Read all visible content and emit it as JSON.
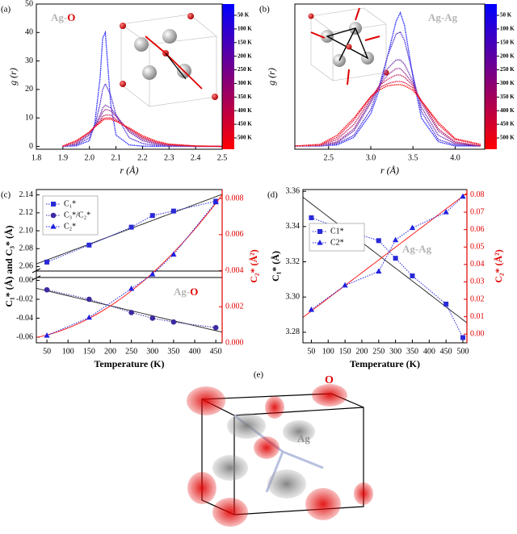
{
  "chart_data": [
    {
      "type": "line",
      "panel_label": "(a)",
      "annotation": [
        "Ag-",
        "O"
      ],
      "annotation_colors": [
        "#b4b4b4",
        "#e00000"
      ],
      "x_label": "r (Å)",
      "y_label": "g (r)",
      "x": [
        1.9,
        1.95,
        2.0,
        2.02,
        2.04,
        2.05,
        2.06,
        2.08,
        2.1,
        2.15,
        2.2,
        2.25,
        2.3,
        2.4,
        2.5
      ],
      "xlim": [
        1.8,
        2.5
      ],
      "xticks": [
        1.8,
        1.9,
        {
          "value": 2,
          "label": "2.0"
        },
        2.1,
        2.2,
        2.3,
        2.4,
        2.5
      ],
      "ylim": [
        -1,
        50
      ],
      "yticks": [
        0,
        10,
        20,
        30,
        40,
        50
      ],
      "colorbar_labels": [
        "50 K",
        "100 K",
        "150 K",
        "200 K",
        "250 K",
        "300 K",
        "350 K",
        "400 K",
        "450 K",
        "500 K"
      ],
      "colorbar_colors": [
        "#0000ff",
        "#ff0000"
      ],
      "series": [
        {
          "color": "#1e1eff",
          "values": [
            0,
            0.2,
            2,
            8,
            24,
            38,
            40,
            15,
            4,
            0.5,
            0.1,
            0,
            0,
            0,
            0
          ]
        },
        {
          "color": "#4a2ad0",
          "values": [
            0,
            0.5,
            3,
            7,
            15,
            20,
            22,
            18,
            11,
            3,
            1,
            0.3,
            0.1,
            0,
            0
          ]
        },
        {
          "color": "#7030b0",
          "values": [
            0,
            0.8,
            4,
            7,
            11,
            13.5,
            14.5,
            13.5,
            11,
            5,
            2,
            0.7,
            0.2,
            0,
            0
          ]
        },
        {
          "color": "#9a2a90",
          "values": [
            0,
            1,
            4.5,
            7,
            10,
            12,
            13,
            12.5,
            10.5,
            5.5,
            2.5,
            1,
            0.3,
            0.1,
            0
          ]
        },
        {
          "color": "#c02060",
          "values": [
            0.1,
            1.5,
            5,
            7,
            9,
            10.5,
            11,
            11,
            9.5,
            6,
            3,
            1.3,
            0.5,
            0.1,
            0
          ]
        },
        {
          "color": "#e01040",
          "values": [
            0.1,
            1.8,
            5,
            7,
            8.6,
            9.6,
            10,
            10,
            9,
            6.2,
            3.3,
            1.6,
            0.7,
            0.1,
            0
          ]
        },
        {
          "color": "#ff0000",
          "values": [
            0.2,
            2,
            5,
            6.8,
            8.2,
            9.2,
            9.5,
            9.5,
            8.8,
            6.5,
            3.8,
            1.9,
            0.8,
            0.2,
            0
          ]
        }
      ]
    },
    {
      "type": "line",
      "panel_label": "(b)",
      "annotation": [
        "Ag-Ag"
      ],
      "annotation_colors": [
        "#b4b4b4"
      ],
      "x_label": "r (Å)",
      "y_label": "g (r)",
      "x": [
        2.1,
        2.4,
        2.6,
        2.8,
        3.0,
        3.1,
        3.2,
        3.3,
        3.35,
        3.4,
        3.5,
        3.6,
        3.8,
        4.0,
        4.3
      ],
      "xlim": [
        2.1,
        4.35
      ],
      "xticks": [
        2.5,
        {
          "value": 3,
          "label": "3.0"
        },
        3.5,
        {
          "value": 4,
          "label": "4.0"
        }
      ],
      "ylim": [
        -0.15,
        6.6
      ],
      "colorbar_labels": [
        "50 K",
        "100 K",
        "150 K",
        "200 K",
        "250 K",
        "300 K",
        "350 K",
        "400 K",
        "450 K",
        "500 K"
      ],
      "colorbar_colors": [
        "#0000ff",
        "#ff0000"
      ],
      "series": [
        {
          "color": "#1e1eff",
          "values": [
            0,
            0,
            0.05,
            0.4,
            1.5,
            2.6,
            4.2,
            5.8,
            6.2,
            5.6,
            3.2,
            1.3,
            0.2,
            0,
            0
          ]
        },
        {
          "color": "#4a2ad0",
          "values": [
            0,
            0,
            0.1,
            0.5,
            1.7,
            2.8,
            4.2,
            5.2,
            5.3,
            4.9,
            3.3,
            1.6,
            0.3,
            0.05,
            0
          ]
        },
        {
          "color": "#7030b0",
          "values": [
            0,
            0,
            0.15,
            0.7,
            2,
            2.8,
            3.6,
            4,
            4,
            3.8,
            3,
            1.8,
            0.5,
            0.1,
            0
          ]
        },
        {
          "color": "#9a2a90",
          "values": [
            0,
            0.02,
            0.2,
            0.8,
            2.1,
            2.8,
            3.3,
            3.6,
            3.6,
            3.4,
            2.9,
            2,
            0.7,
            0.15,
            0
          ]
        },
        {
          "color": "#c02060",
          "values": [
            0,
            0.03,
            0.3,
            1,
            2.2,
            2.8,
            3.1,
            3.3,
            3.3,
            3.2,
            2.8,
            2.1,
            0.8,
            0.2,
            0
          ]
        },
        {
          "color": "#e01040",
          "values": [
            0,
            0.05,
            0.4,
            1.2,
            2.3,
            2.7,
            2.9,
            3,
            3,
            2.95,
            2.7,
            2.1,
            1,
            0.3,
            0.05
          ]
        },
        {
          "color": "#ff0000",
          "values": [
            0,
            0.08,
            0.5,
            1.3,
            2.3,
            2.6,
            2.8,
            2.85,
            2.85,
            2.8,
            2.6,
            2.1,
            1.1,
            0.35,
            0.08
          ]
        }
      ]
    },
    {
      "type": "scatter",
      "panel_label": "(c)",
      "annotation": [
        "Ag-",
        "O"
      ],
      "annotation_colors": [
        "#b4b4b4",
        "#e00000"
      ],
      "x_label": "Temperature (K)",
      "y_label": "C₁* (Å) and C₃* (Å)",
      "y2_label": "C₂* (Å²)",
      "x": [
        50,
        150,
        250,
        300,
        350,
        450
      ],
      "xlim": [
        25,
        465
      ],
      "xticks": [
        50,
        100,
        150,
        200,
        250,
        300,
        350,
        400,
        450
      ],
      "ylim": [
        2.055,
        2.146
      ],
      "yticks": [
        2.06,
        2.08,
        {
          "value": 2.1,
          "label": "2.10"
        },
        2.12,
        2.14
      ],
      "ylim_lower": [
        -0.066,
        0.003
      ],
      "yticks_lower": [
        {
          "value": 0,
          "label": "0.00"
        },
        -0.02,
        -0.04,
        -0.06
      ],
      "y2lim": [
        0,
        0.0085
      ],
      "y2ticks": [
        {
          "value": 0,
          "label": "0.000"
        },
        {
          "value": 0.002,
          "label": "0.002"
        },
        {
          "value": 0.004,
          "label": "0.004"
        },
        {
          "value": 0.006,
          "label": "0.006"
        },
        {
          "value": 0.008,
          "label": "0.008"
        }
      ],
      "legend": "upper left",
      "series": [
        {
          "name": "C₁*",
          "color": "#2a2ad8",
          "marker": "square",
          "axis": "y",
          "fit": "linear",
          "fit_color": "#333333",
          "values": [
            2.065,
            2.084,
            2.104,
            2.117,
            2.122,
            2.133
          ]
        },
        {
          "name": "C₃*/C₂*",
          "color": "#3a2aa0",
          "marker": "circle",
          "axis": "y_lower",
          "fit": "linear",
          "fit_color": "#333333",
          "values": [
            -0.01,
            -0.02,
            -0.034,
            -0.04,
            -0.044,
            -0.05
          ]
        },
        {
          "name": "C₂*",
          "color": "#2020e0",
          "marker": "triangle",
          "axis": "y2",
          "fit": "quadratic",
          "fit_color": "#ff2020",
          "values": [
            0.0004,
            0.0014,
            0.003,
            0.0038,
            0.0049,
            0.0078
          ]
        }
      ]
    },
    {
      "type": "scatter",
      "panel_label": "(d)",
      "annotation": [
        "Ag-Ag"
      ],
      "annotation_colors": [
        "#b4b4b4"
      ],
      "x_label": "Temperature (K)",
      "y_label": "C₁* (Å)",
      "y2_label": "C₂* (Å²)",
      "x": [
        50,
        150,
        250,
        300,
        350,
        450,
        500
      ],
      "xlim": [
        25,
        512
      ],
      "xticks": [
        50,
        100,
        150,
        200,
        250,
        300,
        350,
        400,
        450,
        500
      ],
      "ylim": [
        3.274,
        3.361
      ],
      "yticks": [
        3.28,
        {
          "value": 3.3,
          "label": "3.30"
        },
        3.32,
        3.34,
        3.36
      ],
      "y2lim": [
        -0.005,
        0.083
      ],
      "y2ticks": [
        {
          "value": 0,
          "label": "0.00"
        },
        0.01,
        0.02,
        0.03,
        0.04,
        0.05,
        0.06,
        0.07,
        0.08
      ],
      "legend": "center left",
      "series": [
        {
          "name": "C1*",
          "color": "#2a2ad8",
          "marker": "square",
          "axis": "y",
          "fit": "linear",
          "fit_color": "#333333",
          "values": [
            3.345,
            3.338,
            3.332,
            3.322,
            3.312,
            3.296,
            3.277
          ]
        },
        {
          "name": "C2*",
          "color": "#2020e0",
          "marker": "triangle",
          "axis": "y2",
          "fit": "linear",
          "fit_color": "#ff2020",
          "values": [
            0.014,
            0.028,
            0.036,
            0.054,
            0.061,
            0.07,
            0.079
          ]
        }
      ]
    }
  ],
  "structure": {
    "panel_label": "(e)",
    "o_label": "O",
    "ag_label": "Ag"
  }
}
